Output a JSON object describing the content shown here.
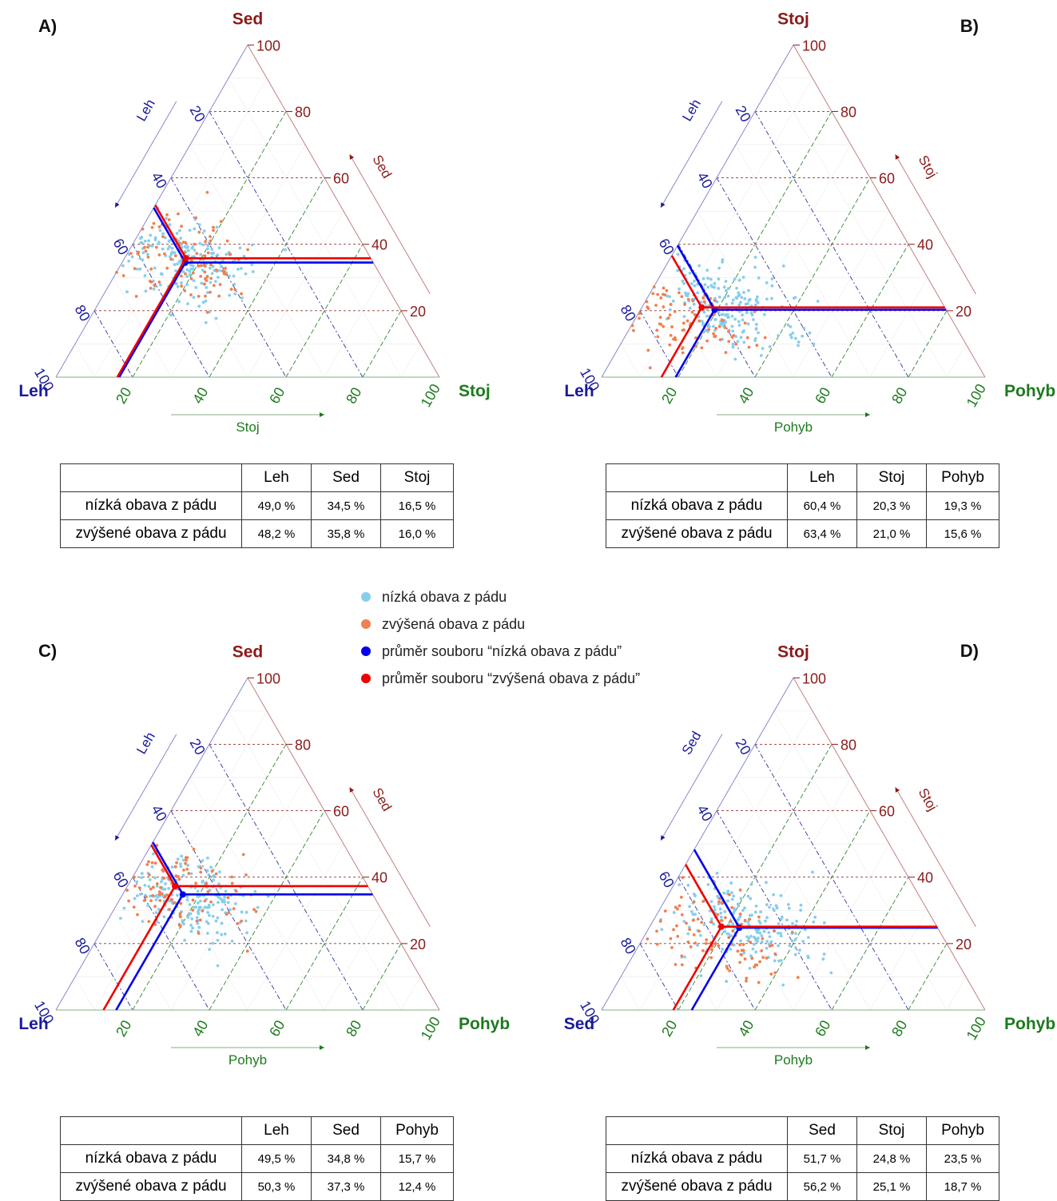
{
  "legend": [
    {
      "label": "nízká obava z pádu",
      "color": "#87ceeb"
    },
    {
      "label": "zvýšená obava z pádu",
      "color": "#f08050"
    },
    {
      "label": "průměr souboru “nízká obava z pádu”",
      "color": "#0000ee"
    },
    {
      "label": "průměr souboru “zvýšená obava z pádu”",
      "color": "#ee0000"
    }
  ],
  "colors": {
    "left_axis": "#1a1a9a",
    "top_axis": "#8b1a1a",
    "right_axis": "#1e7a1e",
    "low_points": "#87ceeb",
    "high_points": "#f08050",
    "low_mean": "#0000ee",
    "high_mean": "#ee0000"
  },
  "chart_data": [
    {
      "type": "scatter",
      "subtype": "ternary",
      "panel": "A)",
      "vertices": {
        "left": "Leh",
        "top": "Sed",
        "right": "Stoj"
      },
      "axis_titles": {
        "left": "Leh",
        "top": "Sed",
        "right": "Stoj"
      },
      "ticks": [
        "20",
        "40",
        "60",
        "80",
        "100"
      ],
      "range": [
        0,
        100
      ],
      "grid": true,
      "series": [
        {
          "name": "nízká obava z pádu",
          "n_points_approx": 200,
          "center": {
            "a": 49,
            "b": 36,
            "c": 15
          },
          "spread": 8
        },
        {
          "name": "zvýšená obava z pádu",
          "n_points_approx": 110,
          "center": {
            "a": 50,
            "b": 36,
            "c": 14
          },
          "spread": 9
        },
        {
          "name": "průměr souboru “nízká obava z pádu”",
          "mean": {
            "a": 49.0,
            "b": 34.5,
            "c": 16.5
          }
        },
        {
          "name": "průměr souboru “zvýšená obava z pádu”",
          "mean": {
            "a": 48.2,
            "b": 35.8,
            "c": 16.0
          }
        }
      ],
      "table": {
        "columns": [
          "",
          "Leh",
          "Sed",
          "Stoj"
        ],
        "rows": [
          {
            "label": "nízká obava z pádu",
            "values": [
              "49,0 %",
              "34,5 %",
              "16,5 %"
            ]
          },
          {
            "label": "zvýšené obava z pádu",
            "values": [
              "48,2 %",
              "35,8 %",
              "16,0 %"
            ]
          }
        ]
      }
    },
    {
      "type": "scatter",
      "subtype": "ternary",
      "panel": "B)",
      "vertices": {
        "left": "Leh",
        "top": "Stoj",
        "right": "Pohyb"
      },
      "axis_titles": {
        "left": "Leh",
        "top": "Stoj",
        "right": "Pohyb"
      },
      "ticks": [
        "20",
        "40",
        "60",
        "80",
        "100"
      ],
      "range": [
        0,
        100
      ],
      "grid": true,
      "series": [
        {
          "name": "nízká obava z pádu",
          "n_points_approx": 200,
          "center": {
            "a": 57,
            "b": 22,
            "c": 21
          },
          "spread": 8
        },
        {
          "name": "zvýšená obava z pádu",
          "n_points_approx": 110,
          "center": {
            "a": 68,
            "b": 18,
            "c": 14
          },
          "spread": 9
        },
        {
          "name": "průměr souboru “nízká obava z pádu”",
          "mean": {
            "a": 60.4,
            "b": 20.3,
            "c": 19.3
          }
        },
        {
          "name": "průměr souboru “zvýšená obava z pádu”",
          "mean": {
            "a": 63.4,
            "b": 21.0,
            "c": 15.6
          }
        }
      ],
      "table": {
        "columns": [
          "",
          "Leh",
          "Stoj",
          "Pohyb"
        ],
        "rows": [
          {
            "label": "nízká obava z pádu",
            "values": [
              "60,4 %",
              "20,3 %",
              "19,3 %"
            ]
          },
          {
            "label": "zvýšené obava z pádu",
            "values": [
              "63,4 %",
              "21,0 %",
              "15,6 %"
            ]
          }
        ]
      }
    },
    {
      "type": "scatter",
      "subtype": "ternary",
      "panel": "C)",
      "vertices": {
        "left": "Leh",
        "top": "Sed",
        "right": "Pohyb"
      },
      "axis_titles": {
        "left": "Leh",
        "top": "Sed",
        "right": "Pohyb"
      },
      "ticks": [
        "20",
        "40",
        "60",
        "80",
        "100"
      ],
      "range": [
        0,
        100
      ],
      "grid": true,
      "series": [
        {
          "name": "nízká obava z pádu",
          "n_points_approx": 200,
          "center": {
            "a": 49,
            "b": 34,
            "c": 17
          },
          "spread": 8
        },
        {
          "name": "zvýšená obava z pádu",
          "n_points_approx": 110,
          "center": {
            "a": 52,
            "b": 37,
            "c": 11
          },
          "spread": 9
        },
        {
          "name": "průměr souboru “nízká obava z pádu”",
          "mean": {
            "a": 49.5,
            "b": 34.8,
            "c": 15.7
          }
        },
        {
          "name": "průměr souboru “zvýšená obava z pádu”",
          "mean": {
            "a": 50.3,
            "b": 37.3,
            "c": 12.4
          }
        }
      ],
      "table": {
        "columns": [
          "",
          "Leh",
          "Sed",
          "Pohyb"
        ],
        "rows": [
          {
            "label": "nízká obava z pádu",
            "values": [
              "49,5 %",
              "34,8 %",
              "15,7 %"
            ]
          },
          {
            "label": "zvýšené obava z pádu",
            "values": [
              "50,3 %",
              "37,3 %",
              "12,4 %"
            ]
          }
        ]
      }
    },
    {
      "type": "scatter",
      "subtype": "ternary",
      "panel": "D)",
      "vertices": {
        "left": "Sed",
        "top": "Stoj",
        "right": "Pohyb"
      },
      "axis_titles": {
        "left": "Sed",
        "top": "Stoj",
        "right": "Pohyb"
      },
      "ticks": [
        "20",
        "40",
        "60",
        "80",
        "100"
      ],
      "range": [
        0,
        100
      ],
      "grid": true,
      "series": [
        {
          "name": "nízká obava z pádu",
          "n_points_approx": 200,
          "center": {
            "a": 50,
            "b": 26,
            "c": 24
          },
          "spread": 9
        },
        {
          "name": "zvýšená obava z pádu",
          "n_points_approx": 110,
          "center": {
            "a": 58,
            "b": 24,
            "c": 18
          },
          "spread": 10
        },
        {
          "name": "průměr souboru “nízká obava z pádu”",
          "mean": {
            "a": 51.7,
            "b": 24.8,
            "c": 23.5
          }
        },
        {
          "name": "průměr souboru “zvýšená obava z pádu”",
          "mean": {
            "a": 56.2,
            "b": 25.1,
            "c": 18.7
          }
        }
      ],
      "table": {
        "columns": [
          "",
          "Sed",
          "Stoj",
          "Pohyb"
        ],
        "rows": [
          {
            "label": "nízká obava z pádu",
            "values": [
              "51,7 %",
              "24,8 %",
              "23,5 %"
            ]
          },
          {
            "label": "zvýšené obava z pádu",
            "values": [
              "56,2 %",
              "25,1 %",
              "18,7 %"
            ]
          }
        ]
      }
    }
  ]
}
